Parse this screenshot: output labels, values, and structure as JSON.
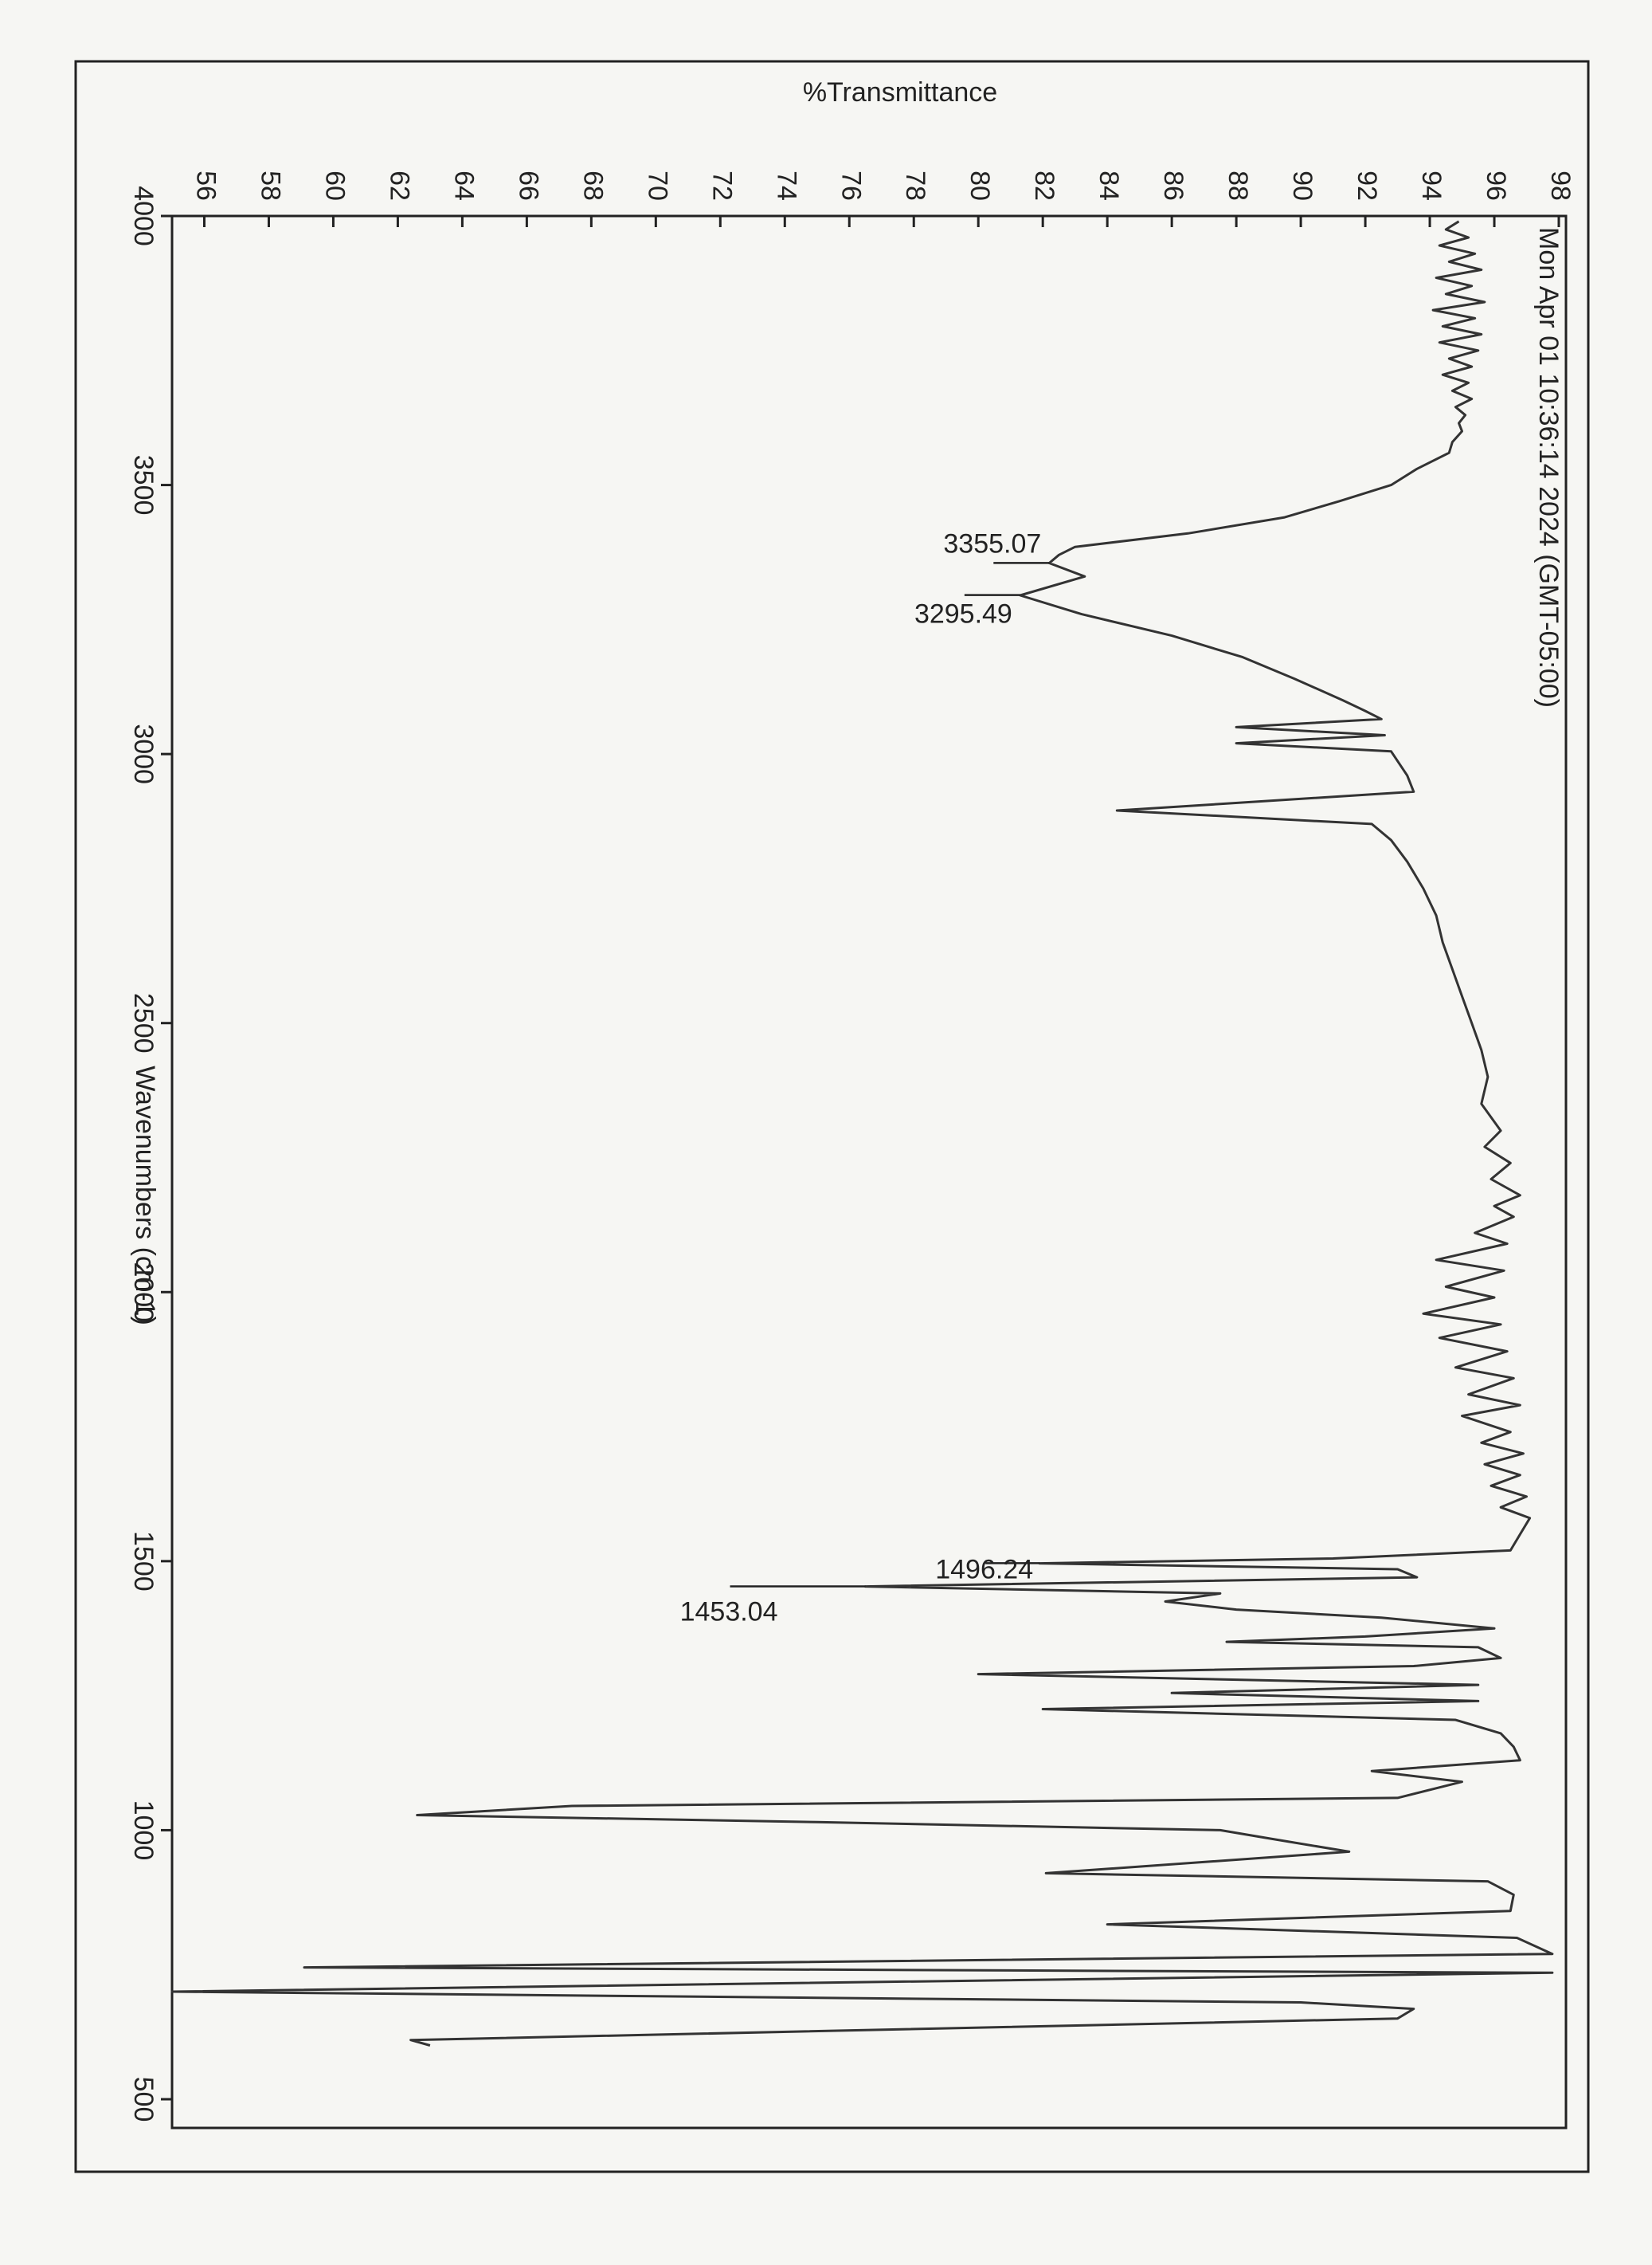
{
  "chart_data": {
    "type": "line",
    "title": "%Transmittance",
    "x_axis_label": "Wavenumbers (cm-1)",
    "timestamp": "Mon Apr 01 10:36:14 2024 (GMT-05:00)",
    "xlim": [
      4000,
      500
    ],
    "xticks": [
      4000,
      3500,
      3000,
      2500,
      2000,
      1500,
      1000,
      500
    ],
    "ylim": [
      55,
      98
    ],
    "yticks": [
      56,
      58,
      60,
      62,
      64,
      66,
      68,
      70,
      72,
      74,
      76,
      78,
      80,
      82,
      84,
      86,
      88,
      90,
      92,
      94,
      96,
      98
    ],
    "x": [
      3990,
      3975,
      3960,
      3945,
      3930,
      3915,
      3900,
      3885,
      3870,
      3855,
      3840,
      3825,
      3810,
      3795,
      3780,
      3765,
      3750,
      3735,
      3720,
      3705,
      3690,
      3675,
      3660,
      3645,
      3630,
      3615,
      3600,
      3580,
      3560,
      3530,
      3500,
      3470,
      3440,
      3410,
      3385,
      3370,
      3355,
      3330,
      3295,
      3260,
      3220,
      3180,
      3140,
      3100,
      3080,
      3065,
      3050,
      3035,
      3020,
      3005,
      2960,
      2930,
      2895,
      2870,
      2840,
      2800,
      2750,
      2700,
      2650,
      2600,
      2550,
      2500,
      2450,
      2400,
      2350,
      2300,
      2270,
      2240,
      2210,
      2180,
      2160,
      2140,
      2110,
      2090,
      2060,
      2040,
      2010,
      1990,
      1960,
      1940,
      1915,
      1890,
      1860,
      1840,
      1810,
      1790,
      1770,
      1740,
      1720,
      1700,
      1680,
      1660,
      1640,
      1620,
      1600,
      1580,
      1550,
      1520,
      1505,
      1496,
      1485,
      1470,
      1453,
      1440,
      1425,
      1410,
      1395,
      1375,
      1360,
      1350,
      1340,
      1320,
      1305,
      1290,
      1270,
      1255,
      1240,
      1225,
      1205,
      1180,
      1155,
      1130,
      1110,
      1090,
      1060,
      1045,
      1028,
      1015,
      1000,
      985,
      960,
      920,
      905,
      880,
      850,
      825,
      800,
      770,
      745,
      735,
      700,
      680,
      668,
      650,
      610,
      600
    ],
    "series": [
      {
        "color": "#333333",
        "values": [
          94.9,
          94.5,
          95.2,
          94.3,
          95.4,
          94.6,
          95.6,
          94.2,
          95.3,
          94.5,
          95.7,
          94.1,
          95.4,
          94.4,
          95.6,
          94.3,
          95.5,
          94.6,
          95.3,
          94.4,
          95.2,
          94.7,
          95.3,
          94.8,
          95.1,
          94.9,
          95.0,
          94.7,
          94.6,
          93.6,
          92.8,
          91.2,
          89.5,
          86.5,
          83.0,
          82.5,
          82.2,
          83.3,
          81.3,
          83.2,
          86.0,
          88.2,
          89.8,
          91.3,
          92.0,
          92.5,
          88.0,
          92.6,
          88.0,
          92.8,
          93.3,
          93.5,
          84.3,
          92.2,
          92.8,
          93.3,
          93.8,
          94.2,
          94.4,
          94.7,
          95.0,
          95.3,
          95.6,
          95.8,
          95.6,
          96.2,
          95.7,
          96.5,
          95.9,
          96.8,
          96.0,
          96.6,
          95.4,
          96.4,
          94.2,
          96.3,
          94.5,
          96.0,
          93.8,
          96.2,
          94.3,
          96.4,
          94.8,
          96.6,
          95.2,
          96.8,
          95.0,
          96.5,
          95.6,
          96.9,
          95.7,
          96.8,
          95.9,
          97.0,
          96.2,
          97.1,
          96.8,
          96.5,
          91.0,
          81.9,
          93.0,
          93.6,
          76.5,
          87.5,
          85.8,
          88.0,
          92.5,
          96.0,
          92.0,
          87.7,
          95.5,
          96.2,
          93.5,
          80.0,
          95.5,
          86.0,
          95.5,
          82.0,
          94.8,
          96.2,
          96.6,
          96.8,
          92.2,
          95.0,
          93.0,
          67.4,
          62.6,
          75.0,
          87.5,
          89.0,
          91.5,
          82.1,
          95.8,
          96.6,
          96.5,
          84.0,
          96.7,
          97.8,
          59.1,
          97.8,
          55.0,
          90.0,
          93.5,
          93.0,
          62.4,
          63.0
        ]
      }
    ],
    "annotations": [
      {
        "label": "3355.07",
        "x": 3355.07,
        "y": 82.2
      },
      {
        "label": "3295.49",
        "x": 3295.49,
        "y": 81.3
      },
      {
        "label": "1496.24",
        "x": 1496.24,
        "y": 81.9
      },
      {
        "label": "1453.04",
        "x": 1453.04,
        "y": 76.5
      }
    ]
  }
}
